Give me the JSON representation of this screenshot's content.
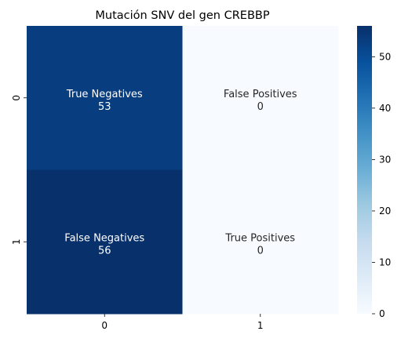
{
  "chart_data": {
    "type": "heatmap",
    "title": "Mutación SNV del gen CREBBP",
    "xlabel": "",
    "ylabel": "",
    "x_ticks": [
      "0",
      "1"
    ],
    "y_ticks": [
      "0",
      "1"
    ],
    "cells": [
      [
        {
          "label": "True Negatives",
          "value": 53
        },
        {
          "label": "False Positives",
          "value": 0
        }
      ],
      [
        {
          "label": "False Negatives",
          "value": 56
        },
        {
          "label": "True Positives",
          "value": 0
        }
      ]
    ],
    "colorbar": {
      "colormap": "Blues",
      "vmin": 0,
      "vmax": 56,
      "ticks": [
        0,
        10,
        20,
        30,
        40,
        50
      ]
    }
  }
}
